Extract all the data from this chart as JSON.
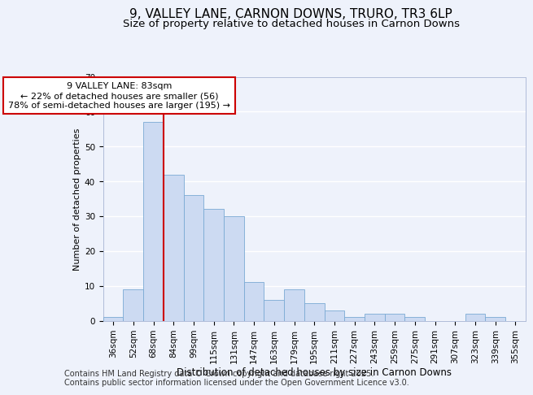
{
  "title1": "9, VALLEY LANE, CARNON DOWNS, TRURO, TR3 6LP",
  "title2": "Size of property relative to detached houses in Carnon Downs",
  "xlabel": "Distribution of detached houses by size in Carnon Downs",
  "ylabel": "Number of detached properties",
  "categories": [
    "36sqm",
    "52sqm",
    "68sqm",
    "84sqm",
    "99sqm",
    "115sqm",
    "131sqm",
    "147sqm",
    "163sqm",
    "179sqm",
    "195sqm",
    "211sqm",
    "227sqm",
    "243sqm",
    "259sqm",
    "275sqm",
    "291sqm",
    "307sqm",
    "323sqm",
    "339sqm",
    "355sqm"
  ],
  "values": [
    1,
    9,
    57,
    42,
    36,
    32,
    30,
    11,
    6,
    9,
    5,
    3,
    1,
    2,
    2,
    1,
    0,
    0,
    2,
    1,
    0
  ],
  "bar_color": "#ccdaf2",
  "bar_edge_color": "#7aaad4",
  "vline_x": 2.5,
  "vline_color": "#cc0000",
  "annotation_text": "9 VALLEY LANE: 83sqm\n← 22% of detached houses are smaller (56)\n78% of semi-detached houses are larger (195) →",
  "annotation_box_facecolor": "#ffffff",
  "annotation_box_edgecolor": "#cc0000",
  "ylim": [
    0,
    70
  ],
  "yticks": [
    0,
    10,
    20,
    30,
    40,
    50,
    60,
    70
  ],
  "footer1": "Contains HM Land Registry data © Crown copyright and database right 2025.",
  "footer2": "Contains public sector information licensed under the Open Government Licence v3.0.",
  "bg_color": "#eef2fb",
  "grid_color": "#ffffff",
  "title1_fontsize": 11,
  "title2_fontsize": 9.5,
  "ylabel_fontsize": 8,
  "xlabel_fontsize": 8.5,
  "tick_fontsize": 7.5,
  "annotation_fontsize": 8,
  "footer_fontsize": 7
}
